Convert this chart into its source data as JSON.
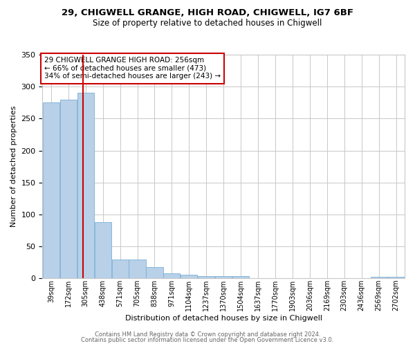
{
  "title1": "29, CHIGWELL GRANGE, HIGH ROAD, CHIGWELL, IG7 6BF",
  "title2": "Size of property relative to detached houses in Chigwell",
  "xlabel": "Distribution of detached houses by size in Chigwell",
  "ylabel": "Number of detached properties",
  "footer1": "Contains HM Land Registry data © Crown copyright and database right 2024.",
  "footer2": "Contains public sector information licensed under the Open Government Licence v3.0.",
  "annotation_line1": "29 CHIGWELL GRANGE HIGH ROAD: 256sqm",
  "annotation_line2": "← 66% of detached houses are smaller (473)",
  "annotation_line3": "34% of semi-detached houses are larger (243) →",
  "bar_labels": [
    "39sqm",
    "172sqm",
    "305sqm",
    "438sqm",
    "571sqm",
    "705sqm",
    "838sqm",
    "971sqm",
    "1104sqm",
    "1237sqm",
    "1370sqm",
    "1504sqm",
    "1637sqm",
    "1770sqm",
    "1903sqm",
    "2036sqm",
    "2169sqm",
    "2303sqm",
    "2436sqm",
    "2569sqm",
    "2702sqm"
  ],
  "bar_values": [
    275,
    280,
    290,
    88,
    30,
    30,
    18,
    8,
    6,
    4,
    4,
    4,
    0,
    0,
    0,
    0,
    0,
    0,
    0,
    3,
    3
  ],
  "bar_color": "#b8d0e8",
  "bar_edge_color": "#7aafd4",
  "red_line_x": 1.85,
  "ylim": [
    0,
    350
  ],
  "yticks": [
    0,
    50,
    100,
    150,
    200,
    250,
    300,
    350
  ],
  "bg_color": "#ffffff",
  "grid_color": "#c8c8c8",
  "annotation_box_color": "#ffffff",
  "annotation_box_edge": "#cc0000",
  "red_line_color": "#cc0000",
  "title1_fontsize": 9.5,
  "title2_fontsize": 8.5,
  "xlabel_fontsize": 8,
  "ylabel_fontsize": 8,
  "tick_fontsize": 7,
  "annotation_fontsize": 7.5,
  "footer_fontsize": 6
}
